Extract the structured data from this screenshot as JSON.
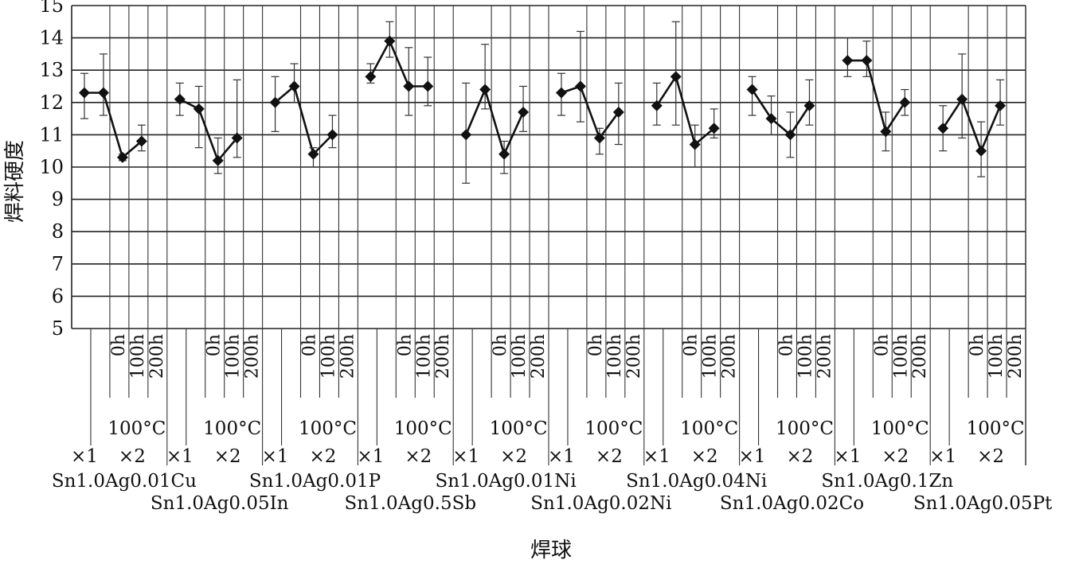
{
  "chart_data": {
    "type": "line",
    "title": "",
    "xlabel": "焊球",
    "ylabel": "焊料硬度",
    "ylim": [
      5,
      15
    ],
    "yticks": [
      "5",
      "6",
      "7",
      "8",
      "9",
      "10",
      "11",
      "12",
      "13",
      "14",
      "15"
    ],
    "grid": true,
    "x_tick_labels": [
      "0h",
      "100h",
      "200h"
    ],
    "condition_label": "100°C",
    "cycle_labels": [
      "×1",
      "×2"
    ],
    "groups": [
      {
        "name": "Sn1.0Ag0.01Cu",
        "values": [
          12.3,
          12.3,
          10.3,
          10.8
        ],
        "err_low": [
          11.5,
          11.6,
          10.2,
          10.5
        ],
        "err_high": [
          12.9,
          13.5,
          10.4,
          11.3
        ]
      },
      {
        "name": "Sn1.0Ag0.05In",
        "values": [
          12.1,
          11.8,
          10.2,
          10.9
        ],
        "err_low": [
          11.6,
          10.6,
          9.8,
          10.3
        ],
        "err_high": [
          12.6,
          12.5,
          10.9,
          12.7
        ]
      },
      {
        "name": "Sn1.0Ag0.01P",
        "values": [
          12.0,
          12.5,
          10.4,
          11.0
        ],
        "err_low": [
          11.1,
          12.0,
          10.0,
          10.6
        ],
        "err_high": [
          12.8,
          13.2,
          10.6,
          11.6
        ]
      },
      {
        "name": "Sn1.0Ag0.5Sb",
        "values": [
          12.8,
          13.9,
          12.5,
          12.5
        ],
        "err_low": [
          12.6,
          13.4,
          11.6,
          11.9
        ],
        "err_high": [
          13.2,
          14.5,
          13.7,
          13.4
        ]
      },
      {
        "name": "Sn1.0Ag0.01Ni",
        "values": [
          11.0,
          12.4,
          10.4,
          11.7
        ],
        "err_low": [
          9.5,
          11.8,
          9.8,
          11.1
        ],
        "err_high": [
          12.6,
          13.8,
          10.8,
          12.5
        ]
      },
      {
        "name": "Sn1.0Ag0.02Ni",
        "values": [
          12.3,
          12.5,
          10.9,
          11.7
        ],
        "err_low": [
          11.6,
          11.4,
          10.4,
          10.7
        ],
        "err_high": [
          12.9,
          14.2,
          11.2,
          12.6
        ]
      },
      {
        "name": "Sn1.0Ag0.04Ni",
        "values": [
          11.9,
          12.8,
          10.7,
          11.2
        ],
        "err_low": [
          11.3,
          11.3,
          10.0,
          10.9
        ],
        "err_high": [
          12.6,
          14.5,
          11.3,
          11.8
        ]
      },
      {
        "name": "Sn1.0Ag0.02Co",
        "values": [
          12.4,
          11.5,
          11.0,
          11.9
        ],
        "err_low": [
          11.6,
          11.0,
          10.3,
          11.3
        ],
        "err_high": [
          12.8,
          12.2,
          11.7,
          12.7
        ]
      },
      {
        "name": "Sn1.0Ag0.1Zn",
        "values": [
          13.3,
          13.3,
          11.1,
          12.0
        ],
        "err_low": [
          12.8,
          12.8,
          10.5,
          11.6
        ],
        "err_high": [
          14.0,
          13.9,
          11.7,
          12.4
        ]
      },
      {
        "name": "Sn1.0Ag0.05Pt",
        "values": [
          11.2,
          12.1,
          10.5,
          11.9
        ],
        "err_low": [
          10.5,
          10.9,
          9.7,
          11.3
        ],
        "err_high": [
          11.9,
          13.5,
          11.4,
          12.7
        ]
      }
    ]
  }
}
